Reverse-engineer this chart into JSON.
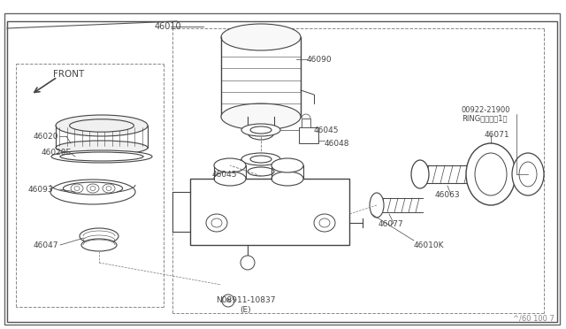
{
  "bg_color": "#ffffff",
  "lc": "#444444",
  "fig_width": 6.4,
  "fig_height": 3.72,
  "dpi": 100,
  "watermark": "^/60 100 7",
  "bottom_note1": "N08911-10837",
  "bottom_note2": "(E)",
  "label_46010": "46010",
  "label_46020": "46020",
  "label_46020E": "46020E",
  "label_46093": "46093",
  "label_46047": "46047",
  "label_46090": "46090",
  "label_46045a": "46045",
  "label_46048": "46048",
  "label_46045b": "46045",
  "label_46077": "46077",
  "label_46063": "46063",
  "label_46071": "46071",
  "label_46010K": "46010K",
  "label_ring1": "00922-21900",
  "label_ring2": "RINGリング（1）",
  "label_front": "FRONT"
}
